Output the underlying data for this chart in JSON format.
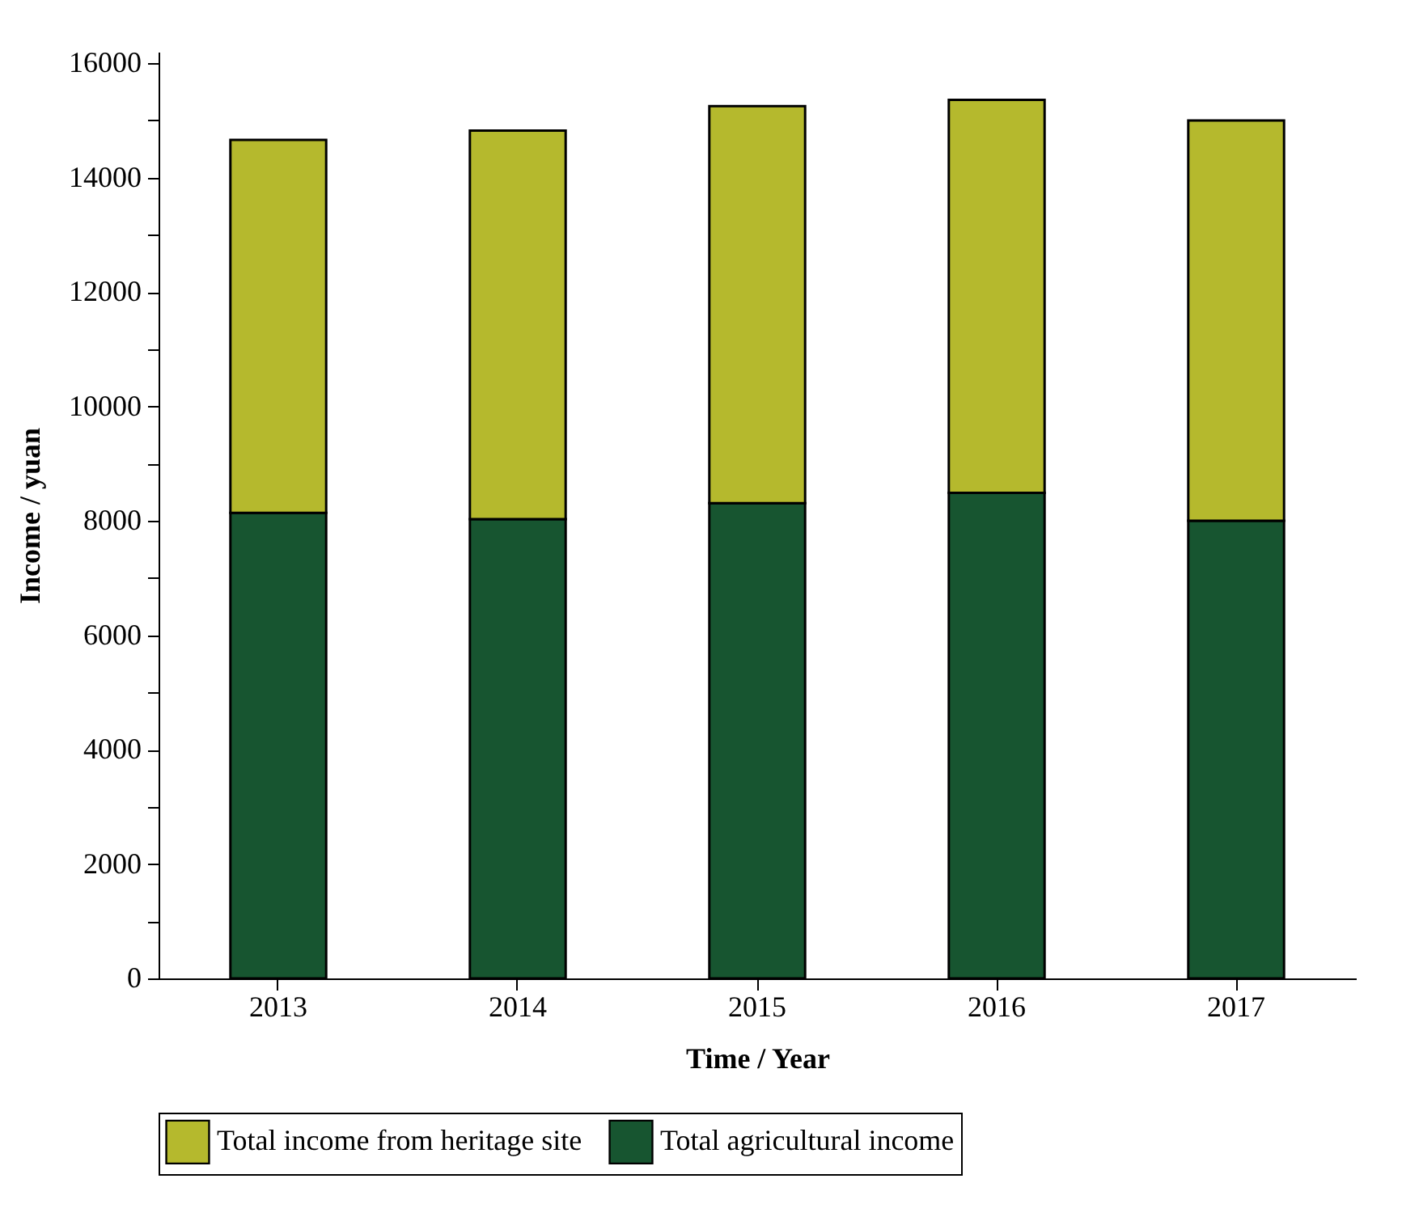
{
  "chart_data": {
    "type": "bar",
    "stacked": true,
    "xlabel": "Time / Year",
    "ylabel": "Income / yuan",
    "categories": [
      "2013",
      "2014",
      "2015",
      "2016",
      "2017"
    ],
    "series": [
      {
        "name": "Total agricultural income",
        "color": "#175530",
        "values": [
          8140,
          8030,
          8310,
          8490,
          8000
        ]
      },
      {
        "name": "Total income from heritage site",
        "color": "#b5b92d",
        "values": [
          6520,
          6790,
          6940,
          6870,
          7000
        ]
      }
    ],
    "ylim": [
      0,
      16200
    ],
    "yticks": [
      0,
      {
        "value": 1000,
        "label": null
      },
      2000,
      {
        "value": 3000,
        "label": null
      },
      4000,
      {
        "value": 5000,
        "label": null
      },
      6000,
      {
        "value": 7000,
        "label": null
      },
      8000,
      {
        "value": 9000,
        "label": null
      },
      10000,
      {
        "value": 11000,
        "label": null
      },
      12000,
      {
        "value": 13000,
        "label": null
      },
      14000,
      {
        "value": 15000,
        "label": null
      },
      16000
    ],
    "grid": false,
    "legend": "bottom"
  }
}
